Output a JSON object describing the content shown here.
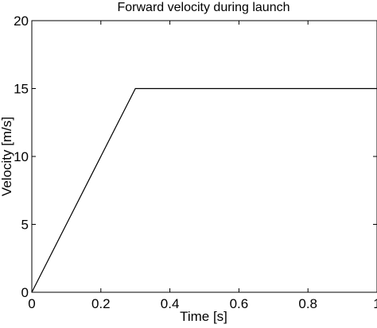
{
  "chart_data": {
    "type": "line",
    "title": "Forward velocity during launch",
    "xlabel": "Time [s]",
    "ylabel": "Velocity [m/s]",
    "xlim": [
      0,
      1
    ],
    "ylim": [
      0,
      20
    ],
    "xticks": [
      0,
      0.2,
      0.4,
      0.6,
      0.8,
      1
    ],
    "xtick_labels": [
      "0",
      "0.2",
      "0.4",
      "0.6",
      "0.8",
      "1"
    ],
    "yticks": [
      0,
      5,
      10,
      15,
      20
    ],
    "ytick_labels": [
      "0",
      "5",
      "10",
      "15",
      "20"
    ],
    "grid": false,
    "legend": "none",
    "series": [
      {
        "x": [
          0,
          0.3,
          1
        ],
        "y": [
          0,
          15,
          15
        ],
        "color": "#000000"
      }
    ]
  }
}
